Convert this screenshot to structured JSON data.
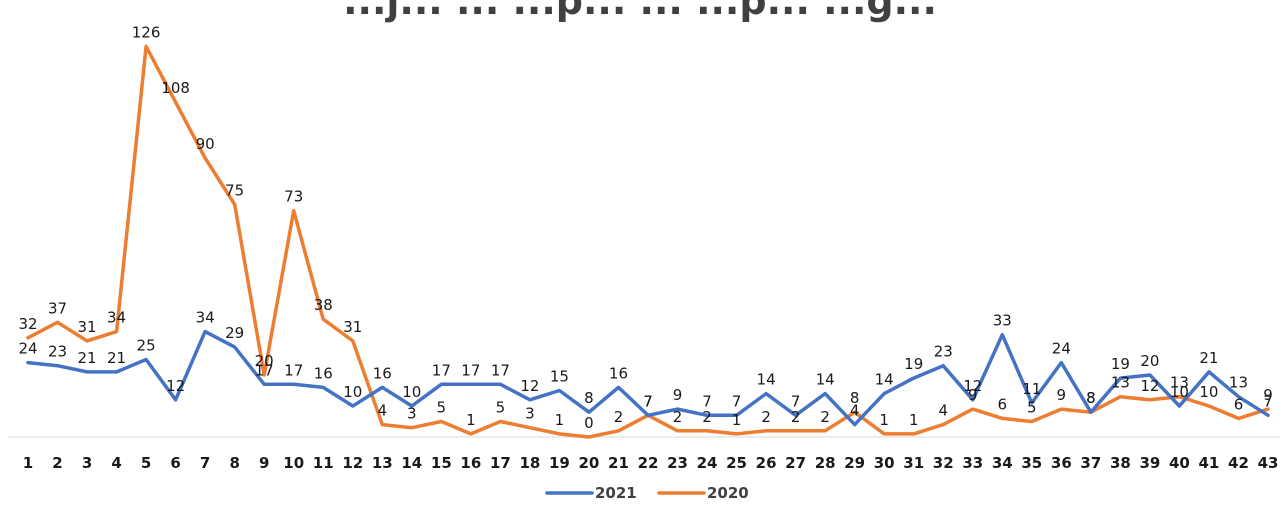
{
  "chart_data": {
    "type": "line",
    "title": "...j... ... ...p... ... ...p... ...g...",
    "xlabel": "",
    "ylabel": "",
    "categories": [
      "1",
      "2",
      "3",
      "4",
      "5",
      "6",
      "7",
      "8",
      "9",
      "10",
      "11",
      "12",
      "13",
      "14",
      "15",
      "16",
      "17",
      "18",
      "19",
      "20",
      "21",
      "22",
      "23",
      "24",
      "25",
      "26",
      "27",
      "28",
      "29",
      "30",
      "31",
      "32",
      "33",
      "34",
      "35",
      "36",
      "37",
      "38",
      "39",
      "40",
      "41",
      "42",
      "43"
    ],
    "ylim": [
      0,
      130
    ],
    "grid": false,
    "legend": "bottom",
    "series": [
      {
        "name": "2021",
        "color": "#4472C4",
        "values": [
          24,
          23,
          21,
          21,
          25,
          12,
          34,
          29,
          17,
          17,
          16,
          10,
          16,
          10,
          17,
          17,
          17,
          12,
          15,
          8,
          16,
          7,
          9,
          7,
          7,
          14,
          7,
          14,
          4,
          14,
          19,
          23,
          12,
          33,
          11,
          24,
          8,
          19,
          20,
          10,
          21,
          13,
          7
        ]
      },
      {
        "name": "2020",
        "color": "#ED7D31",
        "values": [
          32,
          37,
          31,
          34,
          126,
          108,
          90,
          75,
          20,
          73,
          38,
          31,
          4,
          3,
          5,
          1,
          5,
          3,
          1,
          0,
          2,
          7,
          2,
          2,
          1,
          2,
          2,
          2,
          8,
          1,
          1,
          4,
          9,
          6,
          5,
          9,
          8,
          13,
          12,
          13,
          10,
          6,
          9
        ]
      }
    ]
  }
}
